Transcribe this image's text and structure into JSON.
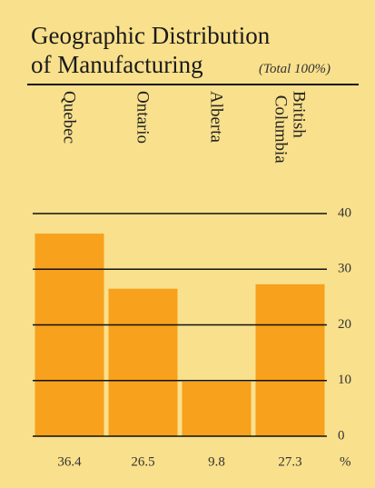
{
  "chart_data": {
    "type": "bar",
    "title_line1": "Geographic Distribution",
    "title_line2": "of Manufacturing",
    "subtitle": "(Total 100%)",
    "categories": [
      "Quebec",
      "Ontario",
      "Alberta",
      "British Columbia"
    ],
    "values": [
      36.4,
      26.5,
      9.8,
      27.3
    ],
    "value_unit": "%",
    "color": "#f7a11c",
    "ylim": [
      0,
      40
    ],
    "yticks": [
      0,
      10,
      20,
      30,
      40
    ],
    "grid": true
  }
}
